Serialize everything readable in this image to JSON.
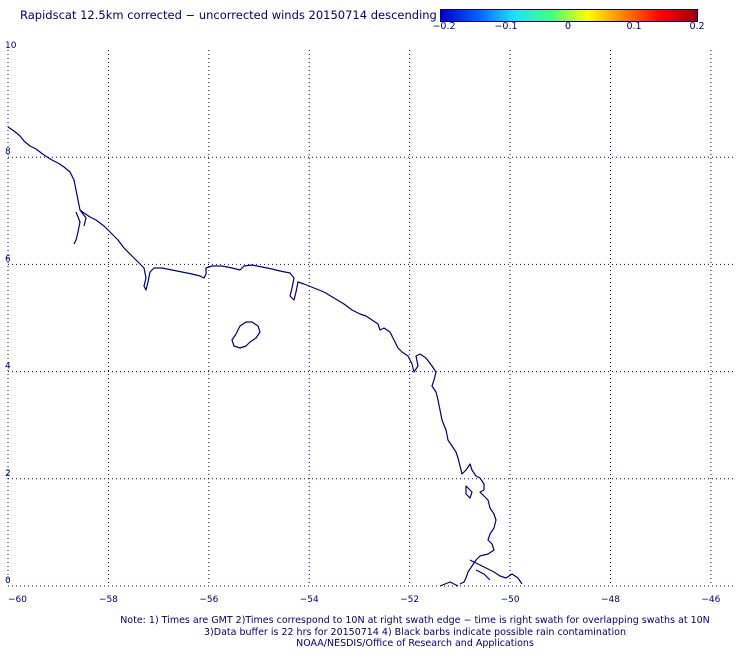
{
  "title": "Rapidscat 12.5km corrected − uncorrected winds 20150714 descending",
  "colorbar": {
    "labels": [
      "−0.2",
      "−0.1",
      "0",
      "0.1",
      "0.2"
    ],
    "stops": [
      "#0000c8",
      "#0060ff",
      "#20e0ff",
      "#40ff80",
      "#ffff00",
      "#ff8000",
      "#ff0000",
      "#a00000"
    ]
  },
  "map": {
    "lon_range": [
      -60,
      -45.5
    ],
    "lat_range": [
      0,
      10
    ],
    "lon_ticks": [
      {
        "value": -60,
        "label": "−60"
      },
      {
        "value": -58,
        "label": "−58"
      },
      {
        "value": -56,
        "label": "−56"
      },
      {
        "value": -54,
        "label": "−54"
      },
      {
        "value": -52,
        "label": "−52"
      },
      {
        "value": -50,
        "label": "−50"
      },
      {
        "value": -48,
        "label": "−48"
      },
      {
        "value": -46,
        "label": "−46"
      }
    ],
    "lat_ticks": [
      {
        "value": 0,
        "label": "0"
      },
      {
        "value": 2,
        "label": "2"
      },
      {
        "value": 4,
        "label": "4"
      },
      {
        "value": 6,
        "label": "6"
      },
      {
        "value": 8,
        "label": "8"
      },
      {
        "value": 10,
        "label": "10"
      }
    ],
    "coastline_color": "#000080"
  },
  "notes": {
    "line1": "Note: 1) Times are GMT 2)Times correspond to 10N at right swath edge − time is right swath for overlapping swaths at 10N",
    "line2": "3)Data buffer is 22 hrs for 20150714 4) Black barbs indicate possible rain contamination",
    "line3": "NOAA/NESDIS/Office of Research and Applications"
  }
}
